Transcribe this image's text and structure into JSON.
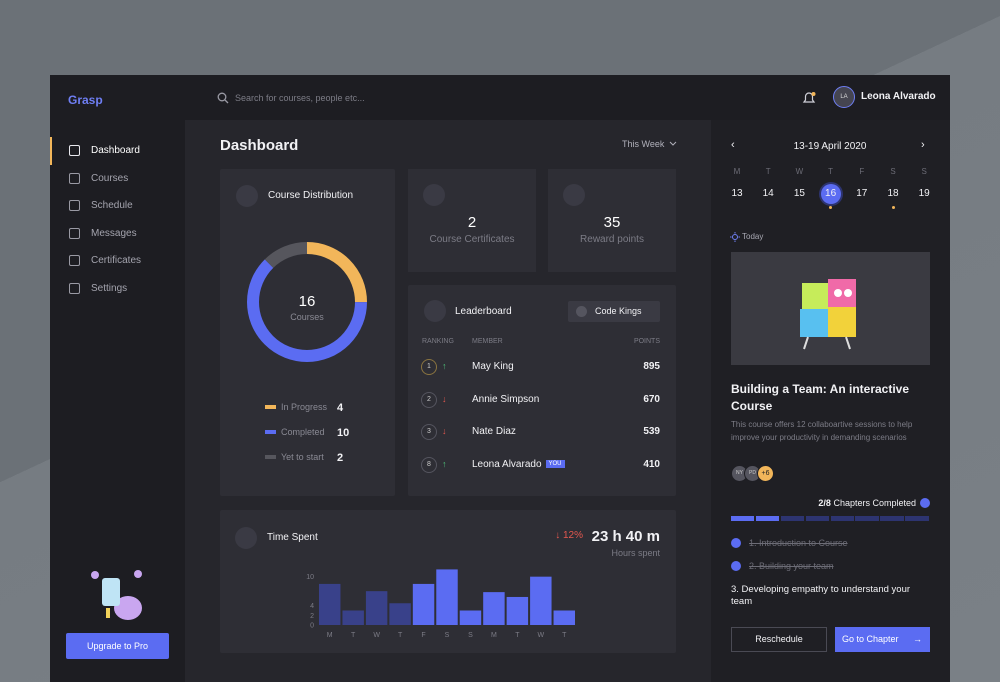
{
  "app": {
    "brand": "Grasp",
    "search_placeholder": "Search for  courses, people etc...",
    "user": {
      "initials": "LA",
      "name": "Leona Alvarado"
    }
  },
  "nav": [
    "Dashboard",
    "Courses",
    "Schedule",
    "Messages",
    "Certificates",
    "Settings"
  ],
  "upgrade": "Upgrade to Pro",
  "page_title": "Dashboard",
  "period": "This Week",
  "stats": [
    {
      "value": 2,
      "label": "Course Certificates"
    },
    {
      "value": 35,
      "label": "Reward points"
    }
  ],
  "leaderboard": {
    "title": "Leaderboard",
    "filter": "Code Kings",
    "columns": [
      "RANKING",
      "MEMBER",
      "POINTS"
    ],
    "rows": [
      {
        "rank": 1,
        "trend": "up",
        "name": "May King",
        "points": 895
      },
      {
        "rank": 2,
        "trend": "down",
        "name": "Annie Simpson",
        "points": 670
      },
      {
        "rank": 3,
        "trend": "down",
        "name": "Nate Diaz",
        "points": 539
      },
      {
        "rank": 8,
        "trend": "up",
        "name": "Leona Alvarado",
        "points": 410,
        "badge": "YOU"
      }
    ]
  },
  "time_spent": {
    "change": "↓ 12%",
    "total": "23 h 40 m",
    "total_label": "Hours spent"
  },
  "chart_data": [
    {
      "type": "donut",
      "title": "Course Distribution",
      "center_value": 16,
      "center_label": "Courses",
      "categories": [
        "In Progress",
        "Completed",
        "Yet to start"
      ],
      "values": [
        4,
        10,
        2
      ],
      "colors": [
        "#f2b65a",
        "#5b6cf2",
        "#56565d"
      ]
    },
    {
      "type": "bar",
      "title": "Time Spent",
      "categories": [
        "M",
        "T",
        "W",
        "T",
        "F",
        "S",
        "S",
        "M",
        "T",
        "W",
        "T"
      ],
      "values": [
        8.5,
        3,
        7,
        4.5,
        8.5,
        11.5,
        3,
        6.8,
        5.8,
        10,
        3
      ],
      "colors": [
        "#39418a",
        "#39418a",
        "#39418a",
        "#39418a",
        "#5b6cf2",
        "#5b6cf2",
        "#5b6cf2",
        "#5b6cf2",
        "#5b6cf2",
        "#5b6cf2",
        "#5b6cf2"
      ],
      "ylim": [
        0,
        12
      ],
      "yticks": [
        0,
        2,
        4,
        10
      ]
    }
  ],
  "calendar": {
    "range": "13-19 April 2020",
    "weekdays": [
      "M",
      "T",
      "W",
      "T",
      "F",
      "S",
      "S"
    ],
    "days": [
      {
        "day": 13
      },
      {
        "day": 14
      },
      {
        "day": 15
      },
      {
        "day": 16,
        "selected": true,
        "event": true
      },
      {
        "day": 17
      },
      {
        "day": 18,
        "event": true
      },
      {
        "day": 19
      }
    ]
  },
  "today": {
    "label": "Today",
    "course_title": "Building a Team: An interactive Course",
    "description": "This course offers 12 collaboartive sessions to help improve your productivity in demanding scenarios",
    "avatars": [
      "NY",
      "PD"
    ],
    "more": "+6",
    "progress_label": "2/8",
    "progress_text": "Chapters Completed",
    "completed": 2,
    "total": 8,
    "chapters": [
      {
        "title": "1. Introduction to Course",
        "done": true
      },
      {
        "title": "2. Building your team",
        "done": true
      },
      {
        "title": "3. Developing empathy to  understand your team",
        "done": false
      }
    ],
    "buttons": [
      "Reschedule",
      "Go to Chapter"
    ]
  }
}
